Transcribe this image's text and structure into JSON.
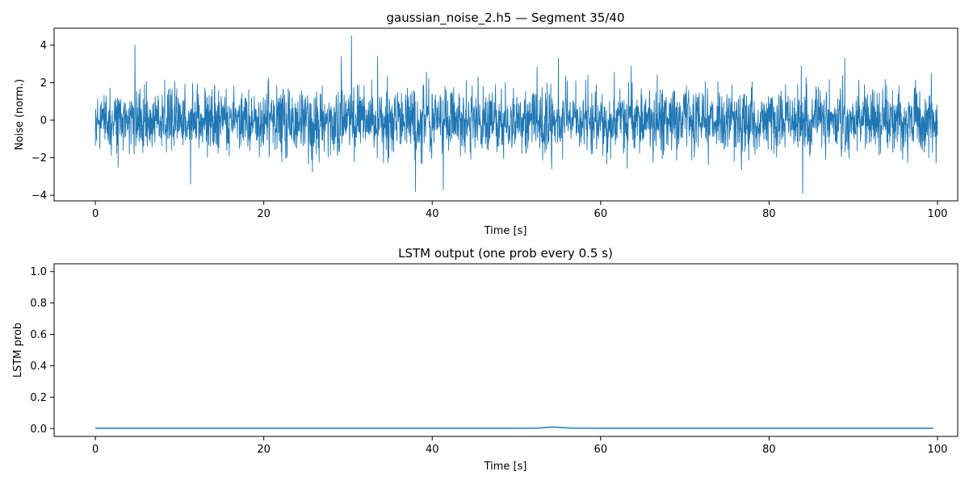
{
  "chart_data": [
    {
      "type": "line",
      "title": "gaussian_noise_2.h5 — Segment 35/40",
      "xlabel": "Time [s]",
      "ylabel": "Noise (norm.)",
      "xlim": [
        -4.9,
        102.4
      ],
      "ylim": [
        -4.3,
        4.9
      ],
      "xticks": [
        0,
        20,
        40,
        60,
        80,
        100
      ],
      "yticks": [
        -4,
        -2,
        0,
        2,
        4
      ],
      "grid": false,
      "color": "#1f77b4",
      "series": [
        {
          "name": "noise",
          "x_start": 0,
          "x_end": 100,
          "num_points": 3000,
          "distribution": "gaussian",
          "mean": 0,
          "std": 0.85,
          "envelope": [
            -3.9,
            4.5
          ],
          "spikes": [
            {
              "x": 4.7,
              "y": 4.0
            },
            {
              "x": 30.4,
              "y": 4.5
            },
            {
              "x": 29.2,
              "y": 3.4
            },
            {
              "x": 38.0,
              "y": -3.8
            },
            {
              "x": 41.3,
              "y": -3.7
            },
            {
              "x": 84.0,
              "y": -3.9
            },
            {
              "x": 89.0,
              "y": 3.3
            },
            {
              "x": 11.3,
              "y": -3.4
            },
            {
              "x": 55.0,
              "y": 3.3
            },
            {
              "x": 33.5,
              "y": 3.4
            }
          ]
        }
      ]
    },
    {
      "type": "line",
      "title": "LSTM output (one prob every 0.5 s)",
      "xlabel": "Time [s]",
      "ylabel": "LSTM prob",
      "xlim": [
        -4.9,
        102.4
      ],
      "ylim": [
        -0.05,
        1.05
      ],
      "xticks": [
        0,
        20,
        40,
        60,
        80,
        100
      ],
      "yticks": [
        0.0,
        0.2,
        0.4,
        0.6,
        0.8,
        1.0
      ],
      "grid": false,
      "color": "#1f77b4",
      "series": [
        {
          "name": "lstm_prob",
          "x": [
            0,
            10,
            20,
            30,
            40,
            50,
            52.5,
            53.5,
            54.5,
            55.5,
            56.5,
            60,
            70,
            80,
            90,
            99.5
          ],
          "y": [
            0.002,
            0.002,
            0.002,
            0.002,
            0.002,
            0.002,
            0.003,
            0.007,
            0.01,
            0.006,
            0.003,
            0.002,
            0.002,
            0.002,
            0.002,
            0.002
          ]
        }
      ]
    }
  ]
}
